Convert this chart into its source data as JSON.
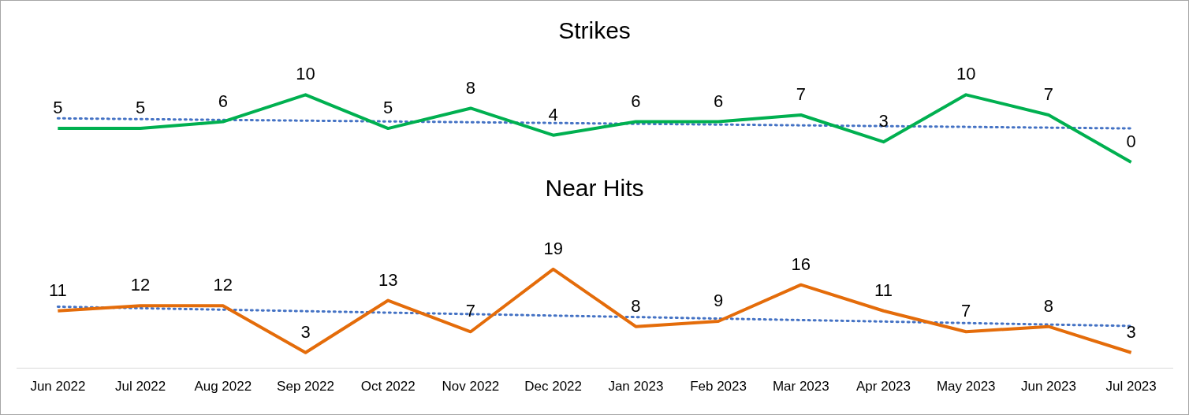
{
  "chart_data": [
    {
      "type": "line",
      "title": "Strikes",
      "categories": [
        "Jun 2022",
        "Jul 2022",
        "Aug 2022",
        "Sep 2022",
        "Oct 2022",
        "Nov 2022",
        "Dec 2022",
        "Jan 2023",
        "Feb 2023",
        "Mar 2023",
        "Apr 2023",
        "May 2023",
        "Jun 2023",
        "Jul 2023"
      ],
      "series": [
        {
          "color": "#00b050",
          "values": [
            5,
            5,
            6,
            10,
            5,
            8,
            4,
            6,
            6,
            7,
            3,
            10,
            7,
            0
          ],
          "value_labels": [
            "5",
            "5",
            "6",
            "10",
            "5",
            "8",
            "4",
            "6",
            "6",
            "7",
            "3",
            "10",
            "7",
            "0"
          ]
        },
        {
          "type": "line",
          "color": "#4472c4",
          "line_style": "dotted",
          "x": [
            "Jun 2022",
            "Jul 2023"
          ],
          "values": [
            6.5,
            5.0
          ]
        }
      ],
      "tick_labels": false,
      "grid": false,
      "legend": false,
      "marker": "none",
      "line_style": "solid"
    },
    {
      "type": "line",
      "title": "Near Hits",
      "categories": [
        "Jun 2022",
        "Jul 2022",
        "Aug 2022",
        "Sep 2022",
        "Oct 2022",
        "Nov 2022",
        "Dec 2022",
        "Jan 2023",
        "Feb 2023",
        "Mar 2023",
        "Apr 2023",
        "May 2023",
        "Jun 2023",
        "Jul 2023"
      ],
      "series": [
        {
          "color": "#e46c0a",
          "values": [
            11,
            12,
            12,
            3,
            13,
            7,
            19,
            8,
            9,
            16,
            11,
            7,
            8,
            3
          ],
          "value_labels": [
            "11",
            "12",
            "12",
            "3",
            "13",
            "7",
            "19",
            "8",
            "9",
            "16",
            "11",
            "7",
            "8",
            "3"
          ]
        },
        {
          "type": "line",
          "color": "#4472c4",
          "line_style": "dotted",
          "x": [
            "Jun 2022",
            "Jul 2023"
          ],
          "values": [
            11.8,
            8.1
          ]
        }
      ],
      "tick_labels": "x",
      "grid": false,
      "legend": false,
      "marker": "none",
      "line_style": "solid"
    }
  ]
}
